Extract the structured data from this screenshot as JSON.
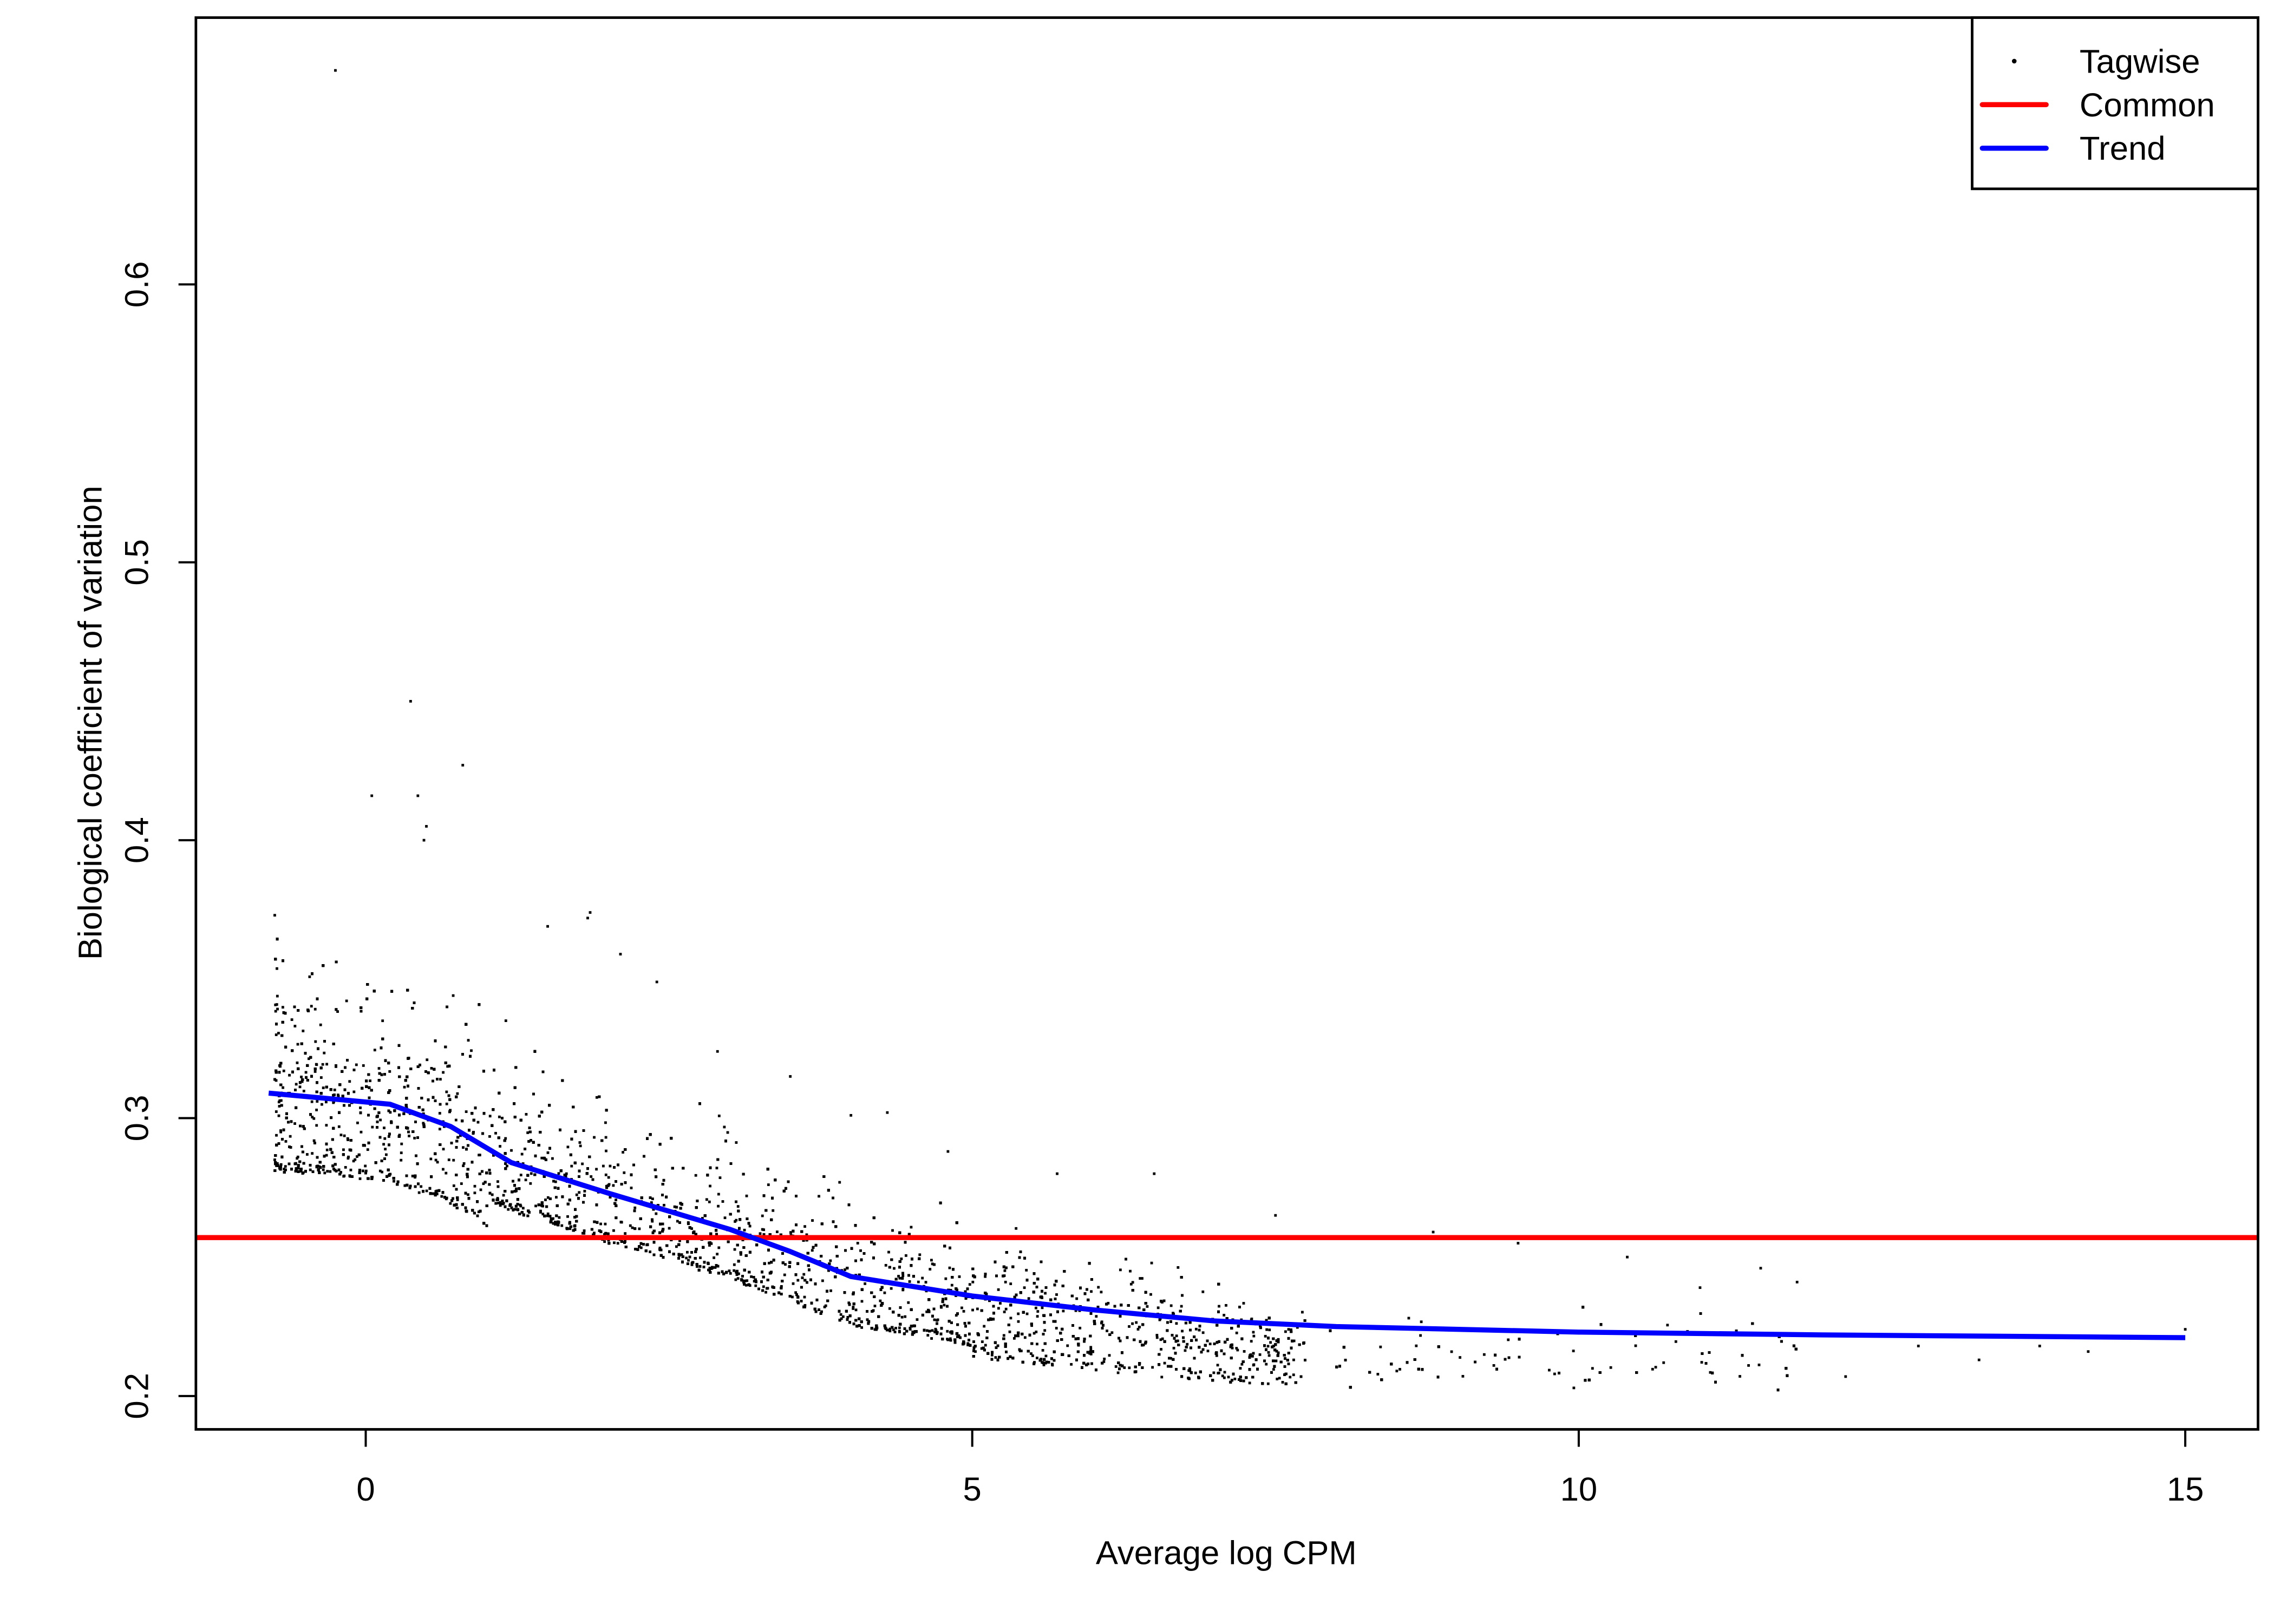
{
  "chart_data": {
    "type": "scatter",
    "title": "",
    "xlabel": "Average log CPM",
    "ylabel": "Biological coefficient of variation",
    "xlim": [
      -1.4,
      15.6
    ],
    "ylim": [
      0.188,
      0.696
    ],
    "x_ticks": [
      0,
      5,
      10,
      15
    ],
    "x_tick_labels": [
      "0",
      "5",
      "10",
      "15"
    ],
    "y_ticks": [
      0.2,
      0.3,
      0.4,
      0.5,
      0.6
    ],
    "y_tick_labels": [
      "0.2",
      "0.3",
      "0.4",
      "0.5",
      "0.6"
    ],
    "grid": false,
    "legend": {
      "placement": "top-right",
      "entries": [
        {
          "label": "Tagwise",
          "kind": "point",
          "color": "#000000"
        },
        {
          "label": "Common",
          "kind": "line",
          "color": "#ff0000"
        },
        {
          "label": "Trend",
          "kind": "line",
          "color": "#0000ff"
        }
      ]
    },
    "series": [
      {
        "name": "Tagwise",
        "kind": "points",
        "color": "#000000",
        "notable_points": [
          [
            -0.25,
            0.677
          ],
          [
            0.37,
            0.45
          ],
          [
            0.8,
            0.427
          ],
          [
            0.05,
            0.416
          ],
          [
            0.43,
            0.416
          ],
          [
            0.5,
            0.405
          ],
          [
            0.48,
            0.4
          ],
          [
            1.85,
            0.374
          ],
          [
            1.83,
            0.372
          ],
          [
            1.5,
            0.369
          ],
          [
            -0.75,
            0.373
          ],
          [
            2.1,
            0.359
          ],
          [
            2.4,
            0.349
          ],
          [
            2.9,
            0.324
          ],
          [
            3.5,
            0.315
          ],
          [
            4.3,
            0.302
          ],
          [
            4.0,
            0.301
          ],
          [
            4.8,
            0.288
          ],
          [
            6.5,
            0.28
          ],
          [
            5.7,
            0.28
          ],
          [
            7.5,
            0.265
          ],
          [
            8.8,
            0.259
          ],
          [
            9.5,
            0.255
          ],
          [
            10.4,
            0.25
          ],
          [
            11.5,
            0.246
          ],
          [
            11.8,
            0.241
          ],
          [
            11.0,
            0.239
          ],
          [
            12.2,
            0.207
          ],
          [
            14.2,
            0.216
          ],
          [
            13.8,
            0.218
          ],
          [
            13.3,
            0.213
          ],
          [
            12.8,
            0.218
          ],
          [
            15.0,
            0.224
          ],
          [
            11.4,
            0.211
          ],
          [
            10.7,
            0.212
          ],
          [
            9.3,
            0.211
          ],
          [
            8.5,
            0.209
          ],
          [
            -0.75,
            0.285
          ],
          [
            -0.7,
            0.295
          ]
        ]
      },
      {
        "name": "Common",
        "kind": "hline",
        "color": "#ff0000",
        "y": 0.257
      },
      {
        "name": "Trend",
        "kind": "line",
        "color": "#0000ff",
        "x": [
          -0.8,
          0.2,
          0.7,
          1.2,
          2.0,
          3.0,
          3.5,
          4.0,
          5.0,
          6.0,
          7.0,
          8.0,
          10.0,
          12.0,
          15.0
        ],
        "y": [
          0.309,
          0.305,
          0.297,
          0.284,
          0.273,
          0.26,
          0.252,
          0.243,
          0.236,
          0.231,
          0.227,
          0.225,
          0.223,
          0.222,
          0.221
        ]
      }
    ]
  }
}
